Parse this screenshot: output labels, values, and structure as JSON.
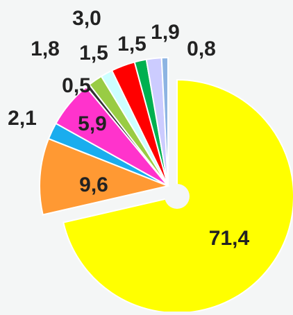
{
  "chart_data": {
    "type": "pie",
    "categories": [
      null,
      null,
      null,
      null,
      null,
      null,
      null,
      null,
      null,
      null,
      null
    ],
    "values": [
      71.4,
      9.6,
      2.1,
      5.9,
      0.5,
      1.8,
      1.5,
      3.0,
      1.5,
      1.9,
      0.8
    ],
    "value_labels": [
      "71,4",
      "9,6",
      "2,1",
      "5,9",
      "0,5",
      "1,8",
      "1,5",
      "3,0",
      "1,5",
      "1,9",
      "0,8"
    ],
    "colors": [
      "#ffff00",
      "#ff9933",
      "#1aadee",
      "#ff33cc",
      "#333333",
      "#99cc44",
      "#ccffff",
      "#ff0000",
      "#00b050",
      "#ccccff",
      "#8db4e2"
    ]
  }
}
